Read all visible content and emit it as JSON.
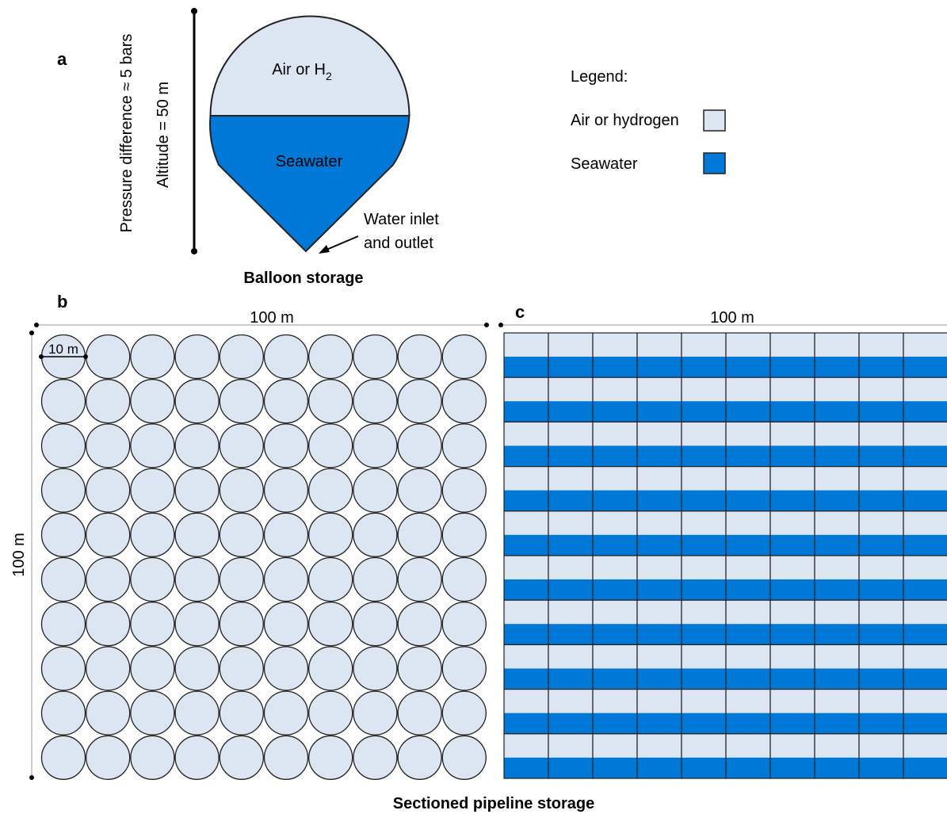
{
  "panel_labels": {
    "a": "a",
    "b": "b",
    "c": "c"
  },
  "balloon": {
    "pressure_label": "Pressure difference ≈ 5 bars",
    "altitude_label": "Altitude = 50 m",
    "gas_label": "Air or H",
    "gas_subscript": "2",
    "water_label": "Seawater",
    "inlet_label_line1": "Water inlet",
    "inlet_label_line2": "and outlet",
    "caption": "Balloon storage"
  },
  "legend": {
    "title": "Legend:",
    "items": [
      {
        "label": "Air or hydrogen",
        "color": "#dce6f2"
      },
      {
        "label": "Seawater",
        "color": "#0078d7"
      }
    ]
  },
  "grid_b": {
    "width_label": "100 m",
    "height_label": "100 m",
    "diameter_label": "10 m",
    "rows": 10,
    "cols": 10
  },
  "grid_c": {
    "width_label": "100 m",
    "rows": 10,
    "cols": 10
  },
  "bottom_caption": "Sectioned pipeline storage",
  "colors": {
    "air": "#dce6f2",
    "water": "#0078d7",
    "stroke": "#222222"
  }
}
